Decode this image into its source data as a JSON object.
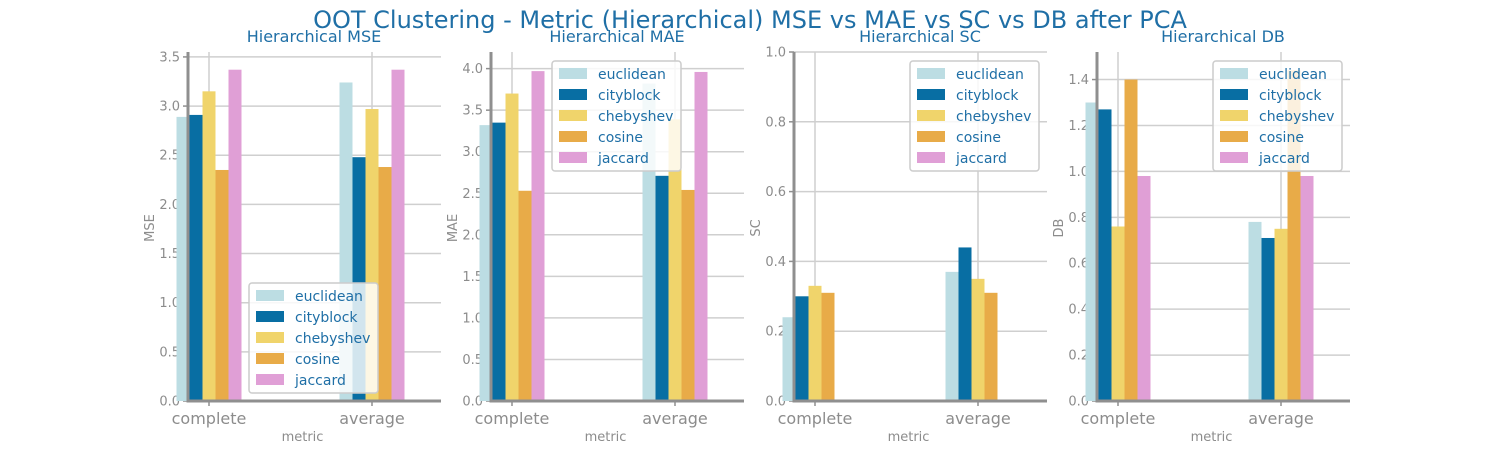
{
  "suptitle": "OOT Clustering - Metric (Hierarchical) MSE vs MAE vs SC vs DB after PCA",
  "colors": {
    "euclidean": "#bcdde3",
    "cityblock": "#086ea3",
    "chebyshev": "#f0d46b",
    "cosine": "#e8ab48",
    "jaccard": "#e09fd6",
    "grid": "#cfcfcf",
    "spine": "#8f8f8f",
    "title": "#1f6fa6"
  },
  "chart_data": [
    {
      "type": "bar",
      "title": "Hierarchical MSE",
      "xlabel": "metric",
      "ylabel": "MSE",
      "categories": [
        "complete",
        "average"
      ],
      "ylim": [
        0,
        3.55
      ],
      "yticks": [
        "0.0",
        "0.5",
        "1.0",
        "1.5",
        "2.0",
        "2.5",
        "3.0",
        "3.5"
      ],
      "legend": "lower-right",
      "series": [
        {
          "name": "euclidean",
          "values": [
            2.89,
            3.24
          ]
        },
        {
          "name": "cityblock",
          "values": [
            2.91,
            2.48
          ]
        },
        {
          "name": "chebyshev",
          "values": [
            3.15,
            2.97
          ]
        },
        {
          "name": "cosine",
          "values": [
            2.35,
            2.38
          ]
        },
        {
          "name": "jaccard",
          "values": [
            3.37,
            3.37
          ]
        }
      ]
    },
    {
      "type": "bar",
      "title": "Hierarchical MAE",
      "xlabel": "metric",
      "ylabel": "MAE",
      "categories": [
        "complete",
        "average"
      ],
      "ylim": [
        0,
        4.2
      ],
      "yticks": [
        "0.0",
        "0.5",
        "1.0",
        "1.5",
        "2.0",
        "2.5",
        "3.0",
        "3.5",
        "4.0"
      ],
      "legend": "top-center",
      "series": [
        {
          "name": "euclidean",
          "values": [
            3.32,
            3.82
          ]
        },
        {
          "name": "cityblock",
          "values": [
            3.35,
            2.71
          ]
        },
        {
          "name": "chebyshev",
          "values": [
            3.7,
            3.39
          ]
        },
        {
          "name": "cosine",
          "values": [
            2.53,
            2.54
          ]
        },
        {
          "name": "jaccard",
          "values": [
            3.97,
            3.96
          ]
        }
      ]
    },
    {
      "type": "bar",
      "title": "Hierarchical SC",
      "xlabel": "metric",
      "ylabel": "SC",
      "categories": [
        "complete",
        "average"
      ],
      "ylim": [
        0,
        1.0
      ],
      "yticks": [
        "0.0",
        "0.2",
        "0.4",
        "0.6",
        "0.8",
        "1.0"
      ],
      "legend": "top-right",
      "series": [
        {
          "name": "euclidean",
          "values": [
            0.24,
            0.37
          ]
        },
        {
          "name": "cityblock",
          "values": [
            0.3,
            0.44
          ]
        },
        {
          "name": "chebyshev",
          "values": [
            0.33,
            0.35
          ]
        },
        {
          "name": "cosine",
          "values": [
            0.31,
            0.31
          ]
        },
        {
          "name": "jaccard",
          "values": [
            0,
            0
          ]
        }
      ]
    },
    {
      "type": "bar",
      "title": "Hierarchical DB",
      "xlabel": "metric",
      "ylabel": "DB",
      "categories": [
        "complete",
        "average"
      ],
      "ylim": [
        0,
        1.52
      ],
      "yticks": [
        "0.0",
        "0.2",
        "0.4",
        "0.6",
        "0.8",
        "1.0",
        "1.2",
        "1.4"
      ],
      "legend": "top-right",
      "series": [
        {
          "name": "euclidean",
          "values": [
            1.3,
            0.78
          ]
        },
        {
          "name": "cityblock",
          "values": [
            1.27,
            0.71
          ]
        },
        {
          "name": "chebyshev",
          "values": [
            0.76,
            0.75
          ]
        },
        {
          "name": "cosine",
          "values": [
            1.4,
            1.44
          ]
        },
        {
          "name": "jaccard",
          "values": [
            0.98,
            0.98
          ]
        }
      ]
    }
  ]
}
